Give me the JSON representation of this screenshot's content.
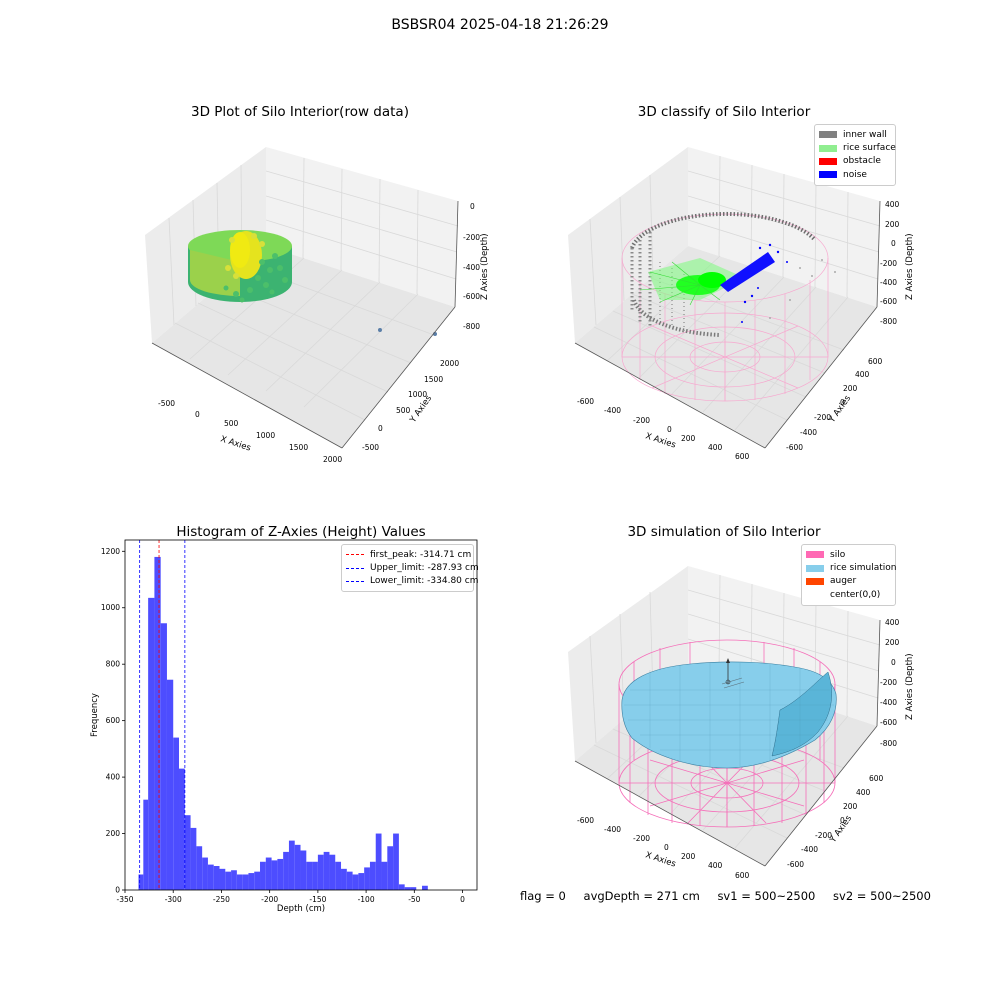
{
  "suptitle": "BSBSR04 2025-04-18 21:26:29",
  "panels": {
    "raw": {
      "title": "3D Plot of Silo Interior(row data)",
      "xlabel": "X Axies",
      "ylabel": "Y Axies",
      "zlabel": "Z Axies (Depth)",
      "xticks": [
        "-500",
        "0",
        "500",
        "1000",
        "1500",
        "2000"
      ],
      "yticks": [
        "-500",
        "0",
        "500",
        "1000",
        "1500",
        "2000"
      ],
      "zticks": [
        "0",
        "-200",
        "-400",
        "-600",
        "-800"
      ]
    },
    "classify": {
      "title": "3D classify of Silo Interior",
      "xlabel": "X Axies",
      "ylabel": "Y Axies",
      "zlabel": "Z Axies (Depth)",
      "xticks": [
        "-600",
        "-400",
        "-200",
        "0",
        "200",
        "400",
        "600"
      ],
      "yticks": [
        "-600",
        "-400",
        "-200",
        "0",
        "200",
        "400",
        "600"
      ],
      "zticks": [
        "400",
        "200",
        "0",
        "-200",
        "-400",
        "-600",
        "-800"
      ],
      "legend": [
        {
          "label": "inner wall",
          "color": "#808080"
        },
        {
          "label": "rice surface",
          "color": "#90ee90"
        },
        {
          "label": "obstacle",
          "color": "#ff0000"
        },
        {
          "label": "noise",
          "color": "#0000ff"
        }
      ]
    },
    "simulation": {
      "title": "3D simulation of Silo Interior",
      "xlabel": "X Axies",
      "ylabel": "Y Axies",
      "zlabel": "Z Axies (Depth)",
      "xticks": [
        "-600",
        "-400",
        "-200",
        "0",
        "200",
        "400",
        "600"
      ],
      "yticks": [
        "-600",
        "-400",
        "-200",
        "0",
        "200",
        "400",
        "600"
      ],
      "zticks": [
        "400",
        "200",
        "0",
        "-200",
        "-400",
        "-600",
        "-800"
      ],
      "legend": [
        {
          "label": "silo",
          "color": "#ff69b4"
        },
        {
          "label": "rice simulation",
          "color": "#87ceeb"
        },
        {
          "label": "auger",
          "color": "#ff4500"
        },
        {
          "label": "center(0,0)",
          "color": ""
        }
      ]
    }
  },
  "chart_data": [
    {
      "type": "bar",
      "title": "Histogram of Z-Axies (Height) Values",
      "xlabel": "Depth (cm)",
      "ylabel": "Frequency",
      "xlim": [
        -350,
        15
      ],
      "ylim": [
        0,
        1240
      ],
      "grid": false,
      "legend_position": "top-right",
      "xticks": [
        -350,
        -300,
        -250,
        -200,
        -150,
        -100,
        -50,
        0
      ],
      "yticks": [
        0,
        200,
        400,
        600,
        800,
        1000,
        1200
      ],
      "bar_color": "#4d4dff",
      "bins": [
        {
          "x0": -336,
          "x1": -331,
          "v": 55
        },
        {
          "x0": -331,
          "x1": -326,
          "v": 320
        },
        {
          "x0": -326,
          "x1": -319.5,
          "v": 1035
        },
        {
          "x0": -319.5,
          "x1": -313,
          "v": 1180
        },
        {
          "x0": -313,
          "x1": -306.5,
          "v": 945
        },
        {
          "x0": -306.5,
          "x1": -300,
          "v": 745
        },
        {
          "x0": -300,
          "x1": -294,
          "v": 540
        },
        {
          "x0": -294,
          "x1": -288,
          "v": 430
        },
        {
          "x0": -288,
          "x1": -282,
          "v": 265
        },
        {
          "x0": -282,
          "x1": -276,
          "v": 220
        },
        {
          "x0": -276,
          "x1": -270,
          "v": 155
        },
        {
          "x0": -270,
          "x1": -264,
          "v": 115
        },
        {
          "x0": -264,
          "x1": -258,
          "v": 90
        },
        {
          "x0": -258,
          "x1": -252,
          "v": 85
        },
        {
          "x0": -252,
          "x1": -246,
          "v": 75
        },
        {
          "x0": -246,
          "x1": -240,
          "v": 65
        },
        {
          "x0": -240,
          "x1": -234,
          "v": 70
        },
        {
          "x0": -234,
          "x1": -228,
          "v": 55
        },
        {
          "x0": -228,
          "x1": -222,
          "v": 55
        },
        {
          "x0": -222,
          "x1": -216,
          "v": 60
        },
        {
          "x0": -216,
          "x1": -210,
          "v": 65
        },
        {
          "x0": -210,
          "x1": -204,
          "v": 100
        },
        {
          "x0": -204,
          "x1": -198,
          "v": 115
        },
        {
          "x0": -198,
          "x1": -192,
          "v": 105
        },
        {
          "x0": -192,
          "x1": -186,
          "v": 110
        },
        {
          "x0": -186,
          "x1": -180,
          "v": 135
        },
        {
          "x0": -180,
          "x1": -174,
          "v": 175
        },
        {
          "x0": -174,
          "x1": -168,
          "v": 160
        },
        {
          "x0": -168,
          "x1": -162,
          "v": 140
        },
        {
          "x0": -162,
          "x1": -156,
          "v": 100
        },
        {
          "x0": -156,
          "x1": -150,
          "v": 100
        },
        {
          "x0": -150,
          "x1": -144,
          "v": 125
        },
        {
          "x0": -144,
          "x1": -138,
          "v": 135
        },
        {
          "x0": -138,
          "x1": -132,
          "v": 125
        },
        {
          "x0": -132,
          "x1": -126,
          "v": 100
        },
        {
          "x0": -126,
          "x1": -120,
          "v": 75
        },
        {
          "x0": -120,
          "x1": -114,
          "v": 65
        },
        {
          "x0": -114,
          "x1": -108,
          "v": 55
        },
        {
          "x0": -108,
          "x1": -102,
          "v": 60
        },
        {
          "x0": -102,
          "x1": -96,
          "v": 80
        },
        {
          "x0": -96,
          "x1": -90,
          "v": 100
        },
        {
          "x0": -90,
          "x1": -84,
          "v": 200
        },
        {
          "x0": -84,
          "x1": -78,
          "v": 100
        },
        {
          "x0": -78,
          "x1": -72,
          "v": 155
        },
        {
          "x0": -72,
          "x1": -66,
          "v": 200
        },
        {
          "x0": -66,
          "x1": -60,
          "v": 20
        },
        {
          "x0": -60,
          "x1": -54,
          "v": 10
        },
        {
          "x0": -54,
          "x1": -48,
          "v": 10
        },
        {
          "x0": -42,
          "x1": -36,
          "v": 15
        }
      ],
      "vlines": [
        {
          "x": -314.71,
          "color": "#ff0000",
          "label": "first_peak: -314.71 cm"
        },
        {
          "x": -287.93,
          "color": "#0000ff",
          "label": "Upper_limit: -287.93 cm"
        },
        {
          "x": -334.8,
          "color": "#0000ff",
          "label": "Lower_limit: -334.80 cm"
        }
      ]
    }
  ],
  "footer": {
    "flag": "flag = 0",
    "avg": "avgDepth = 271 cm",
    "sv1": "sv1 = 500~2500",
    "sv2": "sv2 = 500~2500"
  }
}
